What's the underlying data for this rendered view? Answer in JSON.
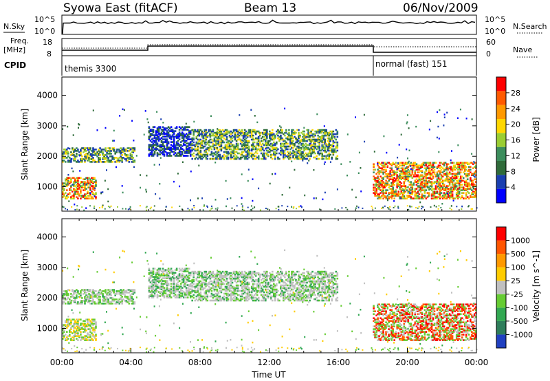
{
  "header": {
    "station": "Syowa East (fitACF)",
    "beam": "Beam 13",
    "date": "06/Nov/2009"
  },
  "top_panels": {
    "nsky_label": "N.Sky",
    "nsky_ticks": [
      "10^5",
      "10^0"
    ],
    "nsearch_label": "N.Search",
    "nsearch_ticks": [
      "10^5",
      "10^0"
    ],
    "freq_label_line1": "Freq.",
    "freq_label_line2": "[MHz]",
    "freq_ticks": [
      "18",
      "8"
    ],
    "nave_label": "Nave",
    "nave_ticks": [
      "60",
      "0"
    ],
    "cpid_label": "CPID",
    "cpid_left": "themis 3300",
    "cpid_right": "normal (fast) 151"
  },
  "chart_data": [
    {
      "type": "heatmap",
      "name": "power",
      "ylabel": "Slant Range [km]",
      "ylim": [
        200,
        4600
      ],
      "yticks": [
        "1000",
        "2000",
        "3000",
        "4000"
      ],
      "colorbar_label": "Power [dB]",
      "colorbar_ticks": [
        "28",
        "24",
        "20",
        "16",
        "12",
        "8",
        "4"
      ],
      "colors": [
        "#0000ff",
        "#1a3fb0",
        "#2f6b3a",
        "#3c8d5c",
        "#9acd32",
        "#ffd700",
        "#ff9900",
        "#ff5a00",
        "#ff0000"
      ],
      "echo_regions": [
        {
          "t0": 0.0,
          "t1": 4.2,
          "r0": 1800,
          "r1": 2300,
          "level": "moderate"
        },
        {
          "t0": 0.0,
          "t1": 2.0,
          "r0": 600,
          "r1": 1300,
          "level": "strong"
        },
        {
          "t0": 5.0,
          "t1": 7.5,
          "r0": 2000,
          "r1": 3000,
          "level": "weak"
        },
        {
          "t0": 7.5,
          "t1": 16.0,
          "r0": 1900,
          "r1": 2900,
          "level": "moderate"
        },
        {
          "t0": 18.0,
          "t1": 24.0,
          "r0": 600,
          "r1": 1800,
          "level": "strong"
        }
      ]
    },
    {
      "type": "heatmap",
      "name": "velocity",
      "ylabel": "Slant Range [km]",
      "xlabel": "Time UT",
      "ylim": [
        200,
        4600
      ],
      "yticks": [
        "1000",
        "2000",
        "3000",
        "4000"
      ],
      "xticks": [
        "00:00",
        "04:00",
        "08:00",
        "12:00",
        "16:00",
        "20:00",
        "00:00"
      ],
      "colorbar_label": "Velocity [m s^-1]",
      "colorbar_ticks": [
        "1000",
        "500",
        "100",
        "25",
        "-25",
        "-100",
        "-500",
        "-1000"
      ],
      "colors": [
        "#2040c0",
        "#2e7d5a",
        "#32a852",
        "#66cc33",
        "#c0c0c0",
        "#ffcc00",
        "#ff9900",
        "#ff5500",
        "#ff0000"
      ]
    }
  ]
}
